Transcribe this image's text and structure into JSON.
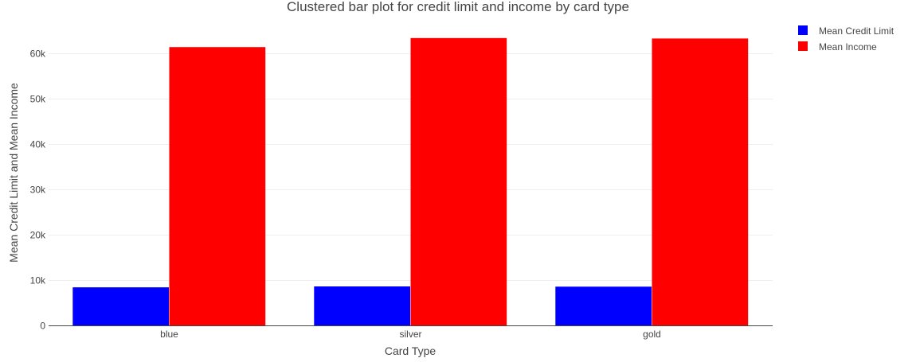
{
  "chart_data": {
    "type": "bar",
    "title": "Clustered bar plot for credit limit and income by card type",
    "xlabel": "Card Type",
    "ylabel": "Mean Credit Limit and Mean Income",
    "categories": [
      "blue",
      "silver",
      "gold"
    ],
    "series": [
      {
        "name": "Mean Credit Limit",
        "color": "#0000ff",
        "values": [
          8400,
          8600,
          8550
        ]
      },
      {
        "name": "Mean Income",
        "color": "#ff0000",
        "values": [
          61400,
          63400,
          63300
        ]
      }
    ],
    "ylim": [
      0,
      66000
    ],
    "yticks": [
      0,
      10000,
      20000,
      30000,
      40000,
      50000,
      60000
    ],
    "ytick_labels": [
      "0",
      "10k",
      "20k",
      "30k",
      "40k",
      "50k",
      "60k"
    ],
    "grid": true,
    "legend_position": "top-right"
  }
}
